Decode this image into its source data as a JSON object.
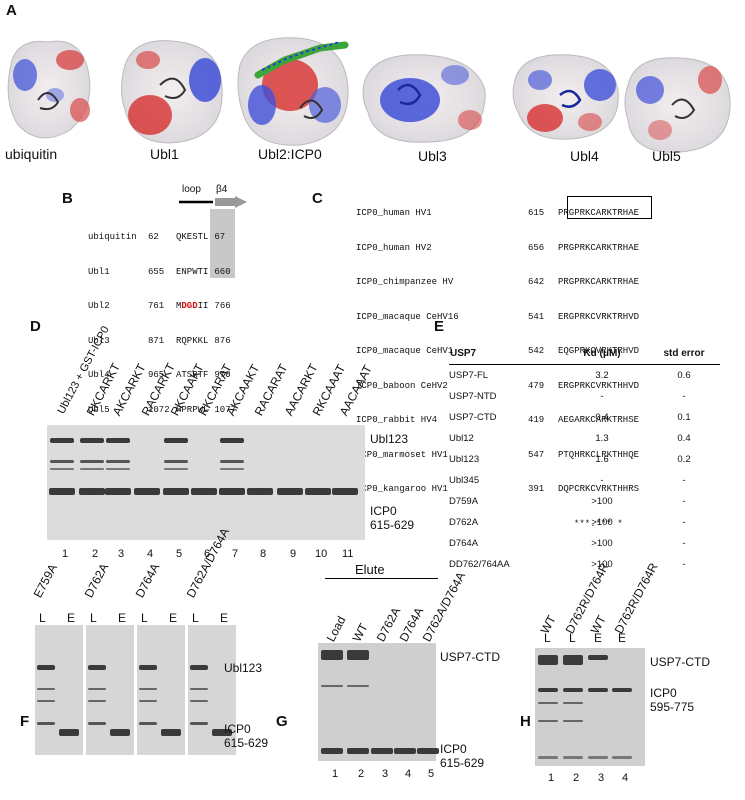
{
  "panels": {
    "A": "A",
    "B": "B",
    "C": "C",
    "D": "D",
    "E": "E",
    "F": "F",
    "G": "G",
    "H": "H"
  },
  "panelA": {
    "labels": [
      "ubiquitin",
      "Ubl1",
      "Ubl2:ICP0",
      "Ubl3",
      "Ubl4",
      "Ubl5"
    ]
  },
  "panelB": {
    "loop_label": "loop",
    "beta4_label": "β4",
    "rows": [
      {
        "name": "ubiquitin",
        "start": "62",
        "pre": "QKE",
        "red": "",
        "post": "STL",
        "end": "67"
      },
      {
        "name": "Ubl1",
        "start": "655",
        "pre": "ENP",
        "red": "",
        "post": "WTI",
        "end": "660"
      },
      {
        "name": "Ubl2",
        "start": "761",
        "pre": "M",
        "red": "DGD",
        "post": "II",
        "end": "766"
      },
      {
        "name": "Ubl3",
        "start": "871",
        "pre": "RQP",
        "red": "",
        "post": "KKL",
        "end": "876"
      },
      {
        "name": "Ubl4",
        "start": "965",
        "pre": "ATS",
        "red": "",
        "post": "RTF",
        "end": "970"
      },
      {
        "name": "Ubl5",
        "start": "1072",
        "pre": "HPR",
        "red": "",
        "post": "PWL",
        "end": "1077"
      }
    ]
  },
  "panelC": {
    "rows": [
      {
        "name": "ICP0_human HV1",
        "start": "615",
        "seq": "PRGPRKCARKTRHAE"
      },
      {
        "name": "ICP0_human HV2",
        "start": "656",
        "seq": "PRGPRKCARKTRHAE"
      },
      {
        "name": "ICP0_chimpanzee HV",
        "start": "642",
        "seq": "PRGPRKCARKTRHAE"
      },
      {
        "name": "ICP0_macaque CeHV16",
        "start": "541",
        "seq": "ERGPRKCVRKTRHVD"
      },
      {
        "name": "ICP0_macaque CeHV1",
        "start": "542",
        "seq": "EQGPRKCVRKTRHVD"
      },
      {
        "name": "ICP0_baboon CeHV2",
        "start": "479",
        "seq": "ERGPRKCVRKTHHVD"
      },
      {
        "name": "ICP0_rabbit HV4",
        "start": "419",
        "seq": "AEGARKCARKTRHSE"
      },
      {
        "name": "ICP0_marmoset HV1",
        "start": "547",
        "seq": "PTQHRKCLRKTHHQE"
      },
      {
        "name": "ICP0_kangaroo HV1",
        "start": "391",
        "seq": "DQPCRKCVRKTHHRS"
      }
    ],
    "conservation": "***.*** *"
  },
  "panelD": {
    "lanes": [
      "Ubl123 + GST-ICP0",
      "RKCARKT",
      "AKCARKT",
      "RACARKT",
      "RKCAAKT",
      "RKCARAT",
      "AKCAAKT",
      "RACARAT",
      "AACARKT",
      "RKCAAAT",
      "AACAAAT"
    ],
    "lane_numbers": [
      "1",
      "2",
      "3",
      "4",
      "5",
      "6",
      "7",
      "8",
      "9",
      "10",
      "11"
    ],
    "band_labels": [
      "Ubl123",
      "ICP0\n615-629"
    ]
  },
  "panelE": {
    "headers": [
      "USP7",
      "Kd (μM)",
      "std error"
    ],
    "rows": [
      [
        "USP7-FL",
        "3.2",
        "0.6"
      ],
      [
        "USP7-NTD",
        "-",
        "-"
      ],
      [
        "USP7-CTD",
        "0.4",
        "0.1"
      ],
      [
        "Ubl12",
        "1.3",
        "0.4"
      ],
      [
        "Ubl123",
        "1.6",
        "0.2"
      ],
      [
        "Ubl345",
        "-",
        "-"
      ],
      [
        "D759A",
        ">100",
        "-"
      ],
      [
        "D762A",
        ">100",
        "-"
      ],
      [
        "D764A",
        ">100",
        "-"
      ],
      [
        "DD762/764AA",
        ">100",
        "-"
      ]
    ]
  },
  "panelF": {
    "mutants": [
      "E759A",
      "D762A",
      "D764A",
      "D762A/D764A"
    ],
    "L": "L",
    "E": "E",
    "band_labels": [
      "Ubl123",
      "ICP0\n615-629"
    ]
  },
  "panelG": {
    "elute_label": "Elute",
    "lanes": [
      "Load",
      "WT",
      "D762A",
      "D764A",
      "D762A/D764A"
    ],
    "lane_numbers": [
      "1",
      "2",
      "3",
      "4",
      "5"
    ],
    "band_labels": [
      "USP7-CTD",
      "ICP0\n615-629"
    ]
  },
  "panelH": {
    "lanes": [
      "WT",
      "D762R/D764R",
      "WT",
      "D762R/D764R"
    ],
    "sub": [
      "L",
      "L",
      "E",
      "E"
    ],
    "lane_numbers": [
      "1",
      "2",
      "3",
      "4"
    ],
    "band_labels": [
      "USP7-CTD",
      "ICP0\n595-775"
    ]
  },
  "colors": {
    "positive": "#3a4fd8",
    "negative": "#d83a3a",
    "neutral": "#f0ecea",
    "gel": "#dcdcdc",
    "band": "#3a3a3a",
    "highlight": "#c8c8c8",
    "red": "#d01010"
  }
}
